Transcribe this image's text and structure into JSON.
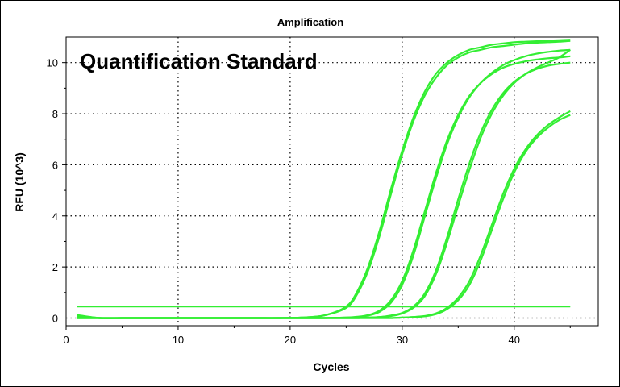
{
  "chart_data": {
    "type": "line",
    "title": "Amplification",
    "overlay_text": "Quantification Standard",
    "xlabel": "Cycles",
    "ylabel": "RFU (10^3)",
    "xlim": [
      0,
      47.5
    ],
    "ylim": [
      -0.3,
      11
    ],
    "xticks": [
      0,
      10,
      20,
      30,
      40
    ],
    "yticks": [
      0,
      2,
      4,
      6,
      8,
      10
    ],
    "grid": true,
    "line_color": "#33ee33",
    "x": [
      1,
      3,
      5,
      7,
      9,
      11,
      13,
      15,
      17,
      19,
      21,
      23,
      25,
      26,
      27,
      28,
      29,
      30,
      31,
      32,
      33,
      34,
      35,
      36,
      37,
      38,
      39,
      40,
      41,
      42,
      43,
      44,
      45
    ],
    "series": [
      {
        "values": [
          0.1,
          0.0,
          0.0,
          0.0,
          0.0,
          0.0,
          0.0,
          0.0,
          0.0,
          0.0,
          0.02,
          0.1,
          0.45,
          1.05,
          2.05,
          3.45,
          5.05,
          6.55,
          7.85,
          8.85,
          9.55,
          10.0,
          10.3,
          10.5,
          10.6,
          10.7,
          10.75,
          10.8,
          10.82,
          10.84,
          10.86,
          10.88,
          10.9
        ]
      },
      {
        "values": [
          0.12,
          0.0,
          0.0,
          0.0,
          0.0,
          0.0,
          0.0,
          0.0,
          0.0,
          0.0,
          0.02,
          0.1,
          0.4,
          0.95,
          1.9,
          3.25,
          4.85,
          6.4,
          7.7,
          8.7,
          9.4,
          9.9,
          10.2,
          10.4,
          10.5,
          10.6,
          10.65,
          10.7,
          10.75,
          10.78,
          10.8,
          10.82,
          10.85
        ]
      },
      {
        "values": [
          0.05,
          0.0,
          0.0,
          0.0,
          0.0,
          0.0,
          0.0,
          0.0,
          0.0,
          0.0,
          0.0,
          0.0,
          0.02,
          0.05,
          0.12,
          0.3,
          0.7,
          1.45,
          2.65,
          4.15,
          5.65,
          6.95,
          7.95,
          8.7,
          9.2,
          9.55,
          9.8,
          9.95,
          10.05,
          10.12,
          10.17,
          10.2,
          10.25
        ]
      },
      {
        "values": [
          0.05,
          0.0,
          0.0,
          0.0,
          0.0,
          0.0,
          0.0,
          0.0,
          0.0,
          0.0,
          0.0,
          0.0,
          0.02,
          0.04,
          0.1,
          0.25,
          0.6,
          1.3,
          2.45,
          3.95,
          5.45,
          6.8,
          7.85,
          8.65,
          9.2,
          9.6,
          9.9,
          10.1,
          10.25,
          10.35,
          10.42,
          10.47,
          10.5
        ]
      },
      {
        "values": [
          0.0,
          0.0,
          0.0,
          0.0,
          0.0,
          0.0,
          0.0,
          0.0,
          0.0,
          0.0,
          0.0,
          0.0,
          0.0,
          0.0,
          0.02,
          0.04,
          0.1,
          0.2,
          0.45,
          0.95,
          1.85,
          3.15,
          4.65,
          6.05,
          7.25,
          8.15,
          8.8,
          9.25,
          9.55,
          9.75,
          9.88,
          9.95,
          10.0
        ]
      },
      {
        "values": [
          0.0,
          0.0,
          0.0,
          0.0,
          0.0,
          0.0,
          0.0,
          0.0,
          0.0,
          0.0,
          0.0,
          0.0,
          0.0,
          0.0,
          0.02,
          0.04,
          0.08,
          0.18,
          0.4,
          0.85,
          1.7,
          2.95,
          4.4,
          5.8,
          7.05,
          8.0,
          8.7,
          9.2,
          9.55,
          9.8,
          10.0,
          10.2,
          10.5
        ]
      },
      {
        "values": [
          0.0,
          0.0,
          0.0,
          0.0,
          0.0,
          0.0,
          0.0,
          0.0,
          0.0,
          0.0,
          0.0,
          0.0,
          0.0,
          0.0,
          0.0,
          0.0,
          0.0,
          0.02,
          0.04,
          0.08,
          0.18,
          0.4,
          0.8,
          1.45,
          2.45,
          3.65,
          4.85,
          5.85,
          6.6,
          7.15,
          7.55,
          7.85,
          8.1
        ]
      },
      {
        "values": [
          0.0,
          0.0,
          0.0,
          0.0,
          0.0,
          0.0,
          0.0,
          0.0,
          0.0,
          0.0,
          0.0,
          0.0,
          0.0,
          0.0,
          0.0,
          0.0,
          0.0,
          0.02,
          0.04,
          0.07,
          0.15,
          0.35,
          0.7,
          1.3,
          2.25,
          3.45,
          4.65,
          5.7,
          6.5,
          7.05,
          7.45,
          7.75,
          7.95
        ]
      },
      {
        "values": [
          0.45,
          0.45,
          0.45,
          0.45,
          0.45,
          0.45,
          0.45,
          0.45,
          0.45,
          0.45,
          0.45,
          0.45,
          0.45,
          0.45,
          0.45,
          0.45,
          0.45,
          0.45,
          0.45,
          0.45,
          0.45,
          0.45,
          0.45,
          0.45,
          0.45,
          0.45,
          0.45,
          0.45,
          0.45,
          0.45,
          0.45,
          0.45,
          0.45
        ]
      }
    ]
  }
}
